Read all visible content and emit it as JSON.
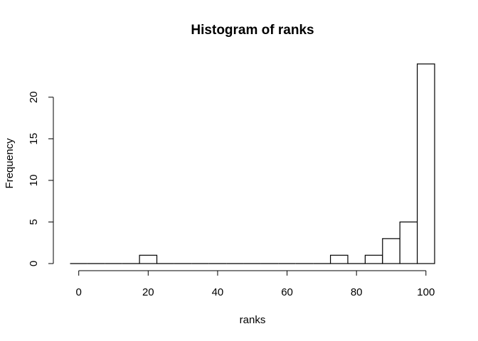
{
  "chart_data": {
    "type": "bar",
    "title": "Histogram of ranks",
    "xlabel": "ranks",
    "ylabel": "Frequency",
    "bin_width": 5,
    "bins": [
      {
        "x0": -2.5,
        "x1": 2.5,
        "count": 0
      },
      {
        "x0": 2.5,
        "x1": 7.5,
        "count": 0
      },
      {
        "x0": 7.5,
        "x1": 12.5,
        "count": 0
      },
      {
        "x0": 12.5,
        "x1": 17.5,
        "count": 0
      },
      {
        "x0": 17.5,
        "x1": 22.5,
        "count": 1
      },
      {
        "x0": 22.5,
        "x1": 27.5,
        "count": 0
      },
      {
        "x0": 27.5,
        "x1": 32.5,
        "count": 0
      },
      {
        "x0": 32.5,
        "x1": 37.5,
        "count": 0
      },
      {
        "x0": 37.5,
        "x1": 42.5,
        "count": 0
      },
      {
        "x0": 42.5,
        "x1": 47.5,
        "count": 0
      },
      {
        "x0": 47.5,
        "x1": 52.5,
        "count": 0
      },
      {
        "x0": 52.5,
        "x1": 57.5,
        "count": 0
      },
      {
        "x0": 57.5,
        "x1": 62.5,
        "count": 0
      },
      {
        "x0": 62.5,
        "x1": 67.5,
        "count": 0
      },
      {
        "x0": 67.5,
        "x1": 72.5,
        "count": 0
      },
      {
        "x0": 72.5,
        "x1": 77.5,
        "count": 1
      },
      {
        "x0": 77.5,
        "x1": 82.5,
        "count": 0
      },
      {
        "x0": 82.5,
        "x1": 87.5,
        "count": 1
      },
      {
        "x0": 87.5,
        "x1": 92.5,
        "count": 3
      },
      {
        "x0": 92.5,
        "x1": 97.5,
        "count": 5
      },
      {
        "x0": 97.5,
        "x1": 102.5,
        "count": 24
      }
    ],
    "x_ticks": [
      0,
      20,
      40,
      60,
      80,
      100
    ],
    "y_ticks": [
      0,
      5,
      10,
      15,
      20
    ],
    "xlim": [
      -2.5,
      102.5
    ],
    "ylim": [
      0,
      24
    ],
    "grid": false,
    "colors": {
      "bar_fill": "#ffffff",
      "bar_stroke": "#000000",
      "axis": "#000000",
      "text": "#000000"
    }
  }
}
